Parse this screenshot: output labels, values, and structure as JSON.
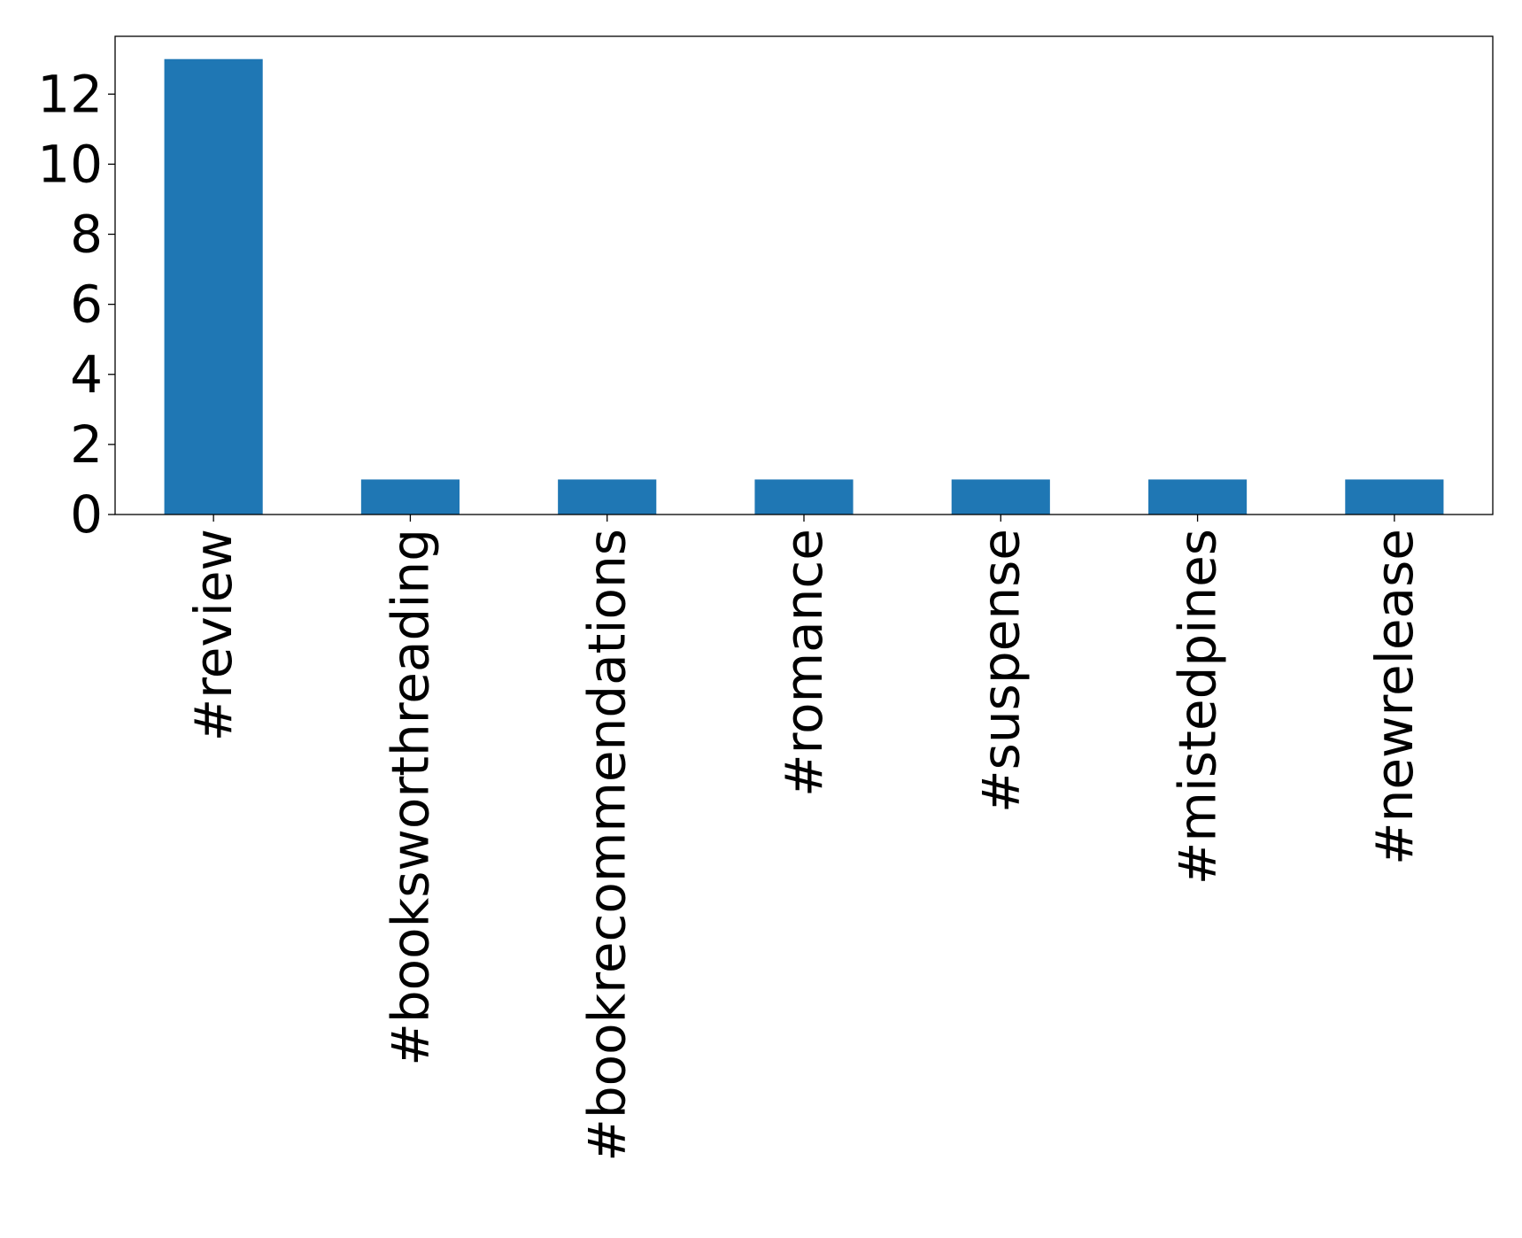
{
  "chart_data": {
    "type": "bar",
    "title": "",
    "xlabel": "",
    "ylabel": "",
    "categories": [
      "#review",
      "#booksworthreading",
      "#bookrecommendations",
      "#romance",
      "#suspense",
      "#mistedpines",
      "#newrelease"
    ],
    "values": [
      13,
      1,
      1,
      1,
      1,
      1,
      1
    ],
    "ylim": [
      0,
      13.65
    ],
    "yticks": [
      "0",
      "2",
      "4",
      "6",
      "8",
      "10",
      "12"
    ],
    "grid": false,
    "legend": "none",
    "bar_color": "#1f77b4"
  }
}
